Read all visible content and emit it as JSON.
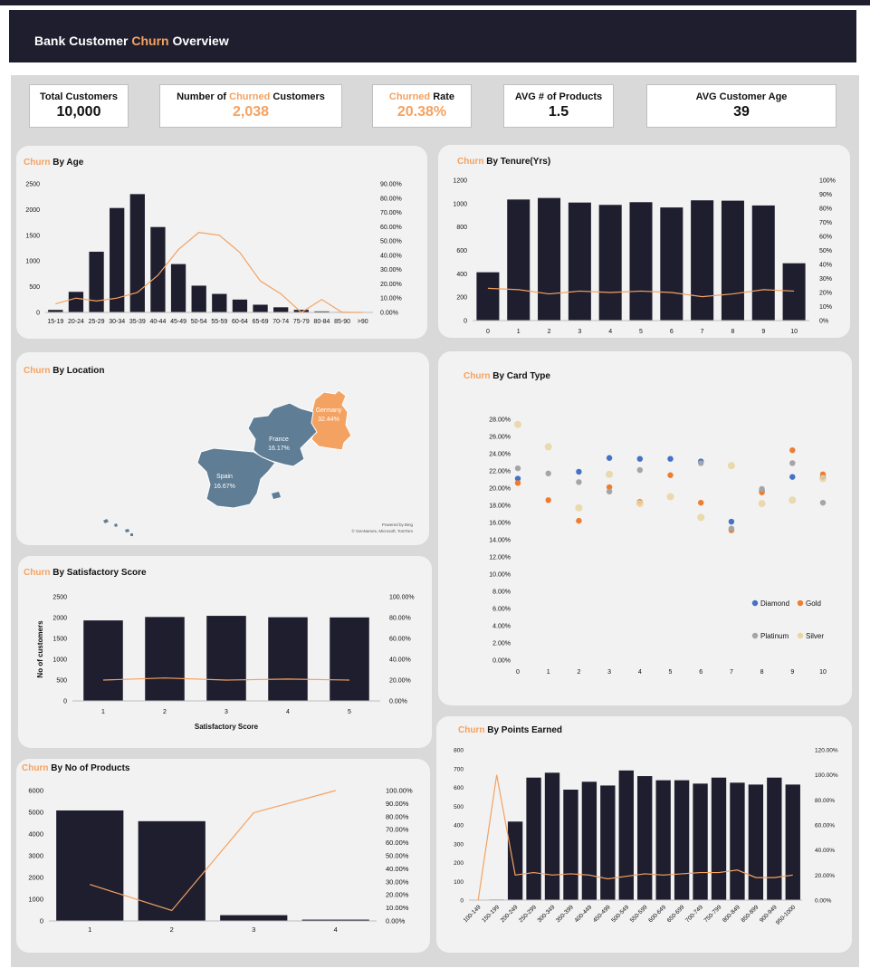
{
  "header": {
    "title_a": "Bank Customer ",
    "title_b": "Churn",
    "title_c": " Overview"
  },
  "kpis": [
    {
      "label_a": "Total Customers",
      "value": "10,000"
    },
    {
      "label_a": "Number of ",
      "label_b": "Churned",
      "label_c": " Customers",
      "value": "2,038"
    },
    {
      "label_b": "Churned",
      "label_c": " Rate",
      "value": "20.38%"
    },
    {
      "label_a": "AVG # of Products",
      "value": "1.5"
    },
    {
      "label_a": "AVG Customer Age",
      "value": "39"
    }
  ],
  "titles": {
    "churn": "Churn",
    "age": " By Age",
    "tenure": " By Tenure(Yrs)",
    "location": " By Location",
    "card": " By Card Type",
    "satisfaction": " By Satisfactory Score",
    "products": " By No of Products",
    "points": " By Points Earned"
  },
  "map": {
    "regions": [
      {
        "name": "Germany",
        "rate": "32.44%"
      },
      {
        "name": "France",
        "rate": "16.17%"
      },
      {
        "name": "Spain",
        "rate": "16.67%"
      }
    ],
    "credit_1": "Powered by Bing",
    "credit_2": "© GeoNames, Microsoft, TomTom"
  },
  "colors": {
    "bar": "#1f1e2e",
    "line": "#f4a261",
    "germany": "#f4a261",
    "france_spain": "#5f7d95",
    "diamond": "#4472c4",
    "gold": "#ed7d31",
    "platinum": "#a5a5a5",
    "silver": "#e8d5a0"
  },
  "chart_data": [
    {
      "id": "age",
      "type": "bar",
      "categories": [
        "15-19",
        "20-24",
        "25-29",
        "30-34",
        "35-39",
        "40-44",
        "45-49",
        "50-54",
        "55-59",
        "60-64",
        "65-69",
        "70-74",
        "75-79",
        "80-84",
        "85-90",
        ">90"
      ],
      "values": [
        49,
        400,
        1180,
        2030,
        2300,
        1660,
        940,
        520,
        360,
        250,
        150,
        100,
        50,
        20,
        10,
        5
      ],
      "line_values": [
        0.06,
        0.1,
        0.08,
        0.1,
        0.14,
        0.26,
        0.44,
        0.56,
        0.54,
        0.42,
        0.22,
        0.13,
        0.0,
        0.09,
        0.0,
        0.0
      ],
      "ylim": [
        0,
        2500
      ],
      "yticks": [
        "0",
        "500",
        "1000",
        "1500",
        "2000",
        "2500"
      ],
      "y2lim": [
        0,
        0.9
      ],
      "y2ticks": [
        "0.00%",
        "10.00%",
        "20.00%",
        "30.00%",
        "40.00%",
        "50.00%",
        "60.00%",
        "70.00%",
        "80.00%",
        "90.00%"
      ]
    },
    {
      "id": "tenure",
      "type": "bar",
      "categories": [
        "0",
        "1",
        "2",
        "3",
        "4",
        "5",
        "6",
        "7",
        "8",
        "9",
        "10"
      ],
      "values": [
        413,
        1035,
        1048,
        1009,
        989,
        1012,
        967,
        1028,
        1025,
        984,
        490
      ],
      "line_values": [
        0.23,
        0.22,
        0.19,
        0.21,
        0.2,
        0.21,
        0.2,
        0.17,
        0.19,
        0.22,
        0.21
      ],
      "ylim": [
        0,
        1200
      ],
      "yticks": [
        "0",
        "200",
        "400",
        "600",
        "800",
        "1000",
        "1200"
      ],
      "y2lim": [
        0,
        1.0
      ],
      "y2ticks": [
        "0%",
        "10%",
        "20%",
        "30%",
        "40%",
        "50%",
        "60%",
        "70%",
        "80%",
        "90%",
        "100%"
      ]
    },
    {
      "id": "card",
      "type": "scatter",
      "x": [
        0,
        1,
        2,
        3,
        4,
        5,
        6,
        7,
        8,
        9,
        10
      ],
      "series": [
        {
          "name": "Diamond",
          "values": [
            0.211,
            null,
            0.219,
            0.235,
            0.234,
            0.234,
            0.231,
            0.161,
            0.197,
            0.213,
            0.213
          ]
        },
        {
          "name": "Gold",
          "values": [
            0.206,
            0.186,
            0.162,
            0.201,
            0.184,
            0.215,
            0.183,
            0.151,
            0.195,
            0.244,
            0.216
          ]
        },
        {
          "name": "Platinum",
          "values": [
            0.223,
            0.217,
            0.207,
            0.196,
            0.221,
            null,
            0.229,
            0.153,
            0.199,
            0.229,
            0.183
          ]
        },
        {
          "name": "Silver",
          "values": [
            0.274,
            0.248,
            0.177,
            0.216,
            0.182,
            0.19,
            0.166,
            0.226,
            0.182,
            0.186,
            0.211
          ]
        }
      ],
      "ylim": [
        0,
        0.28
      ],
      "yticks": [
        "0.00%",
        "2.00%",
        "4.00%",
        "6.00%",
        "8.00%",
        "10.00%",
        "12.00%",
        "14.00%",
        "16.00%",
        "18.00%",
        "20.00%",
        "22.00%",
        "24.00%",
        "26.00%",
        "28.00%"
      ],
      "xticks": [
        "0",
        "1",
        "2",
        "3",
        "4",
        "5",
        "6",
        "7",
        "8",
        "9",
        "10"
      ]
    },
    {
      "id": "satisfaction",
      "type": "bar",
      "categories": [
        "1",
        "2",
        "3",
        "4",
        "5"
      ],
      "values": [
        1932,
        2014,
        2042,
        2008,
        2004
      ],
      "line_values": [
        0.2,
        0.22,
        0.2,
        0.21,
        0.2
      ],
      "ylim": [
        0,
        2500
      ],
      "yticks": [
        "0",
        "500",
        "1000",
        "1500",
        "2000",
        "2500"
      ],
      "y2lim": [
        0,
        1.0
      ],
      "y2ticks": [
        "0.00%",
        "20.00%",
        "40.00%",
        "60.00%",
        "80.00%",
        "100.00%"
      ],
      "xlabel": "Satisfactory Score",
      "ylabel": "No of customers"
    },
    {
      "id": "products",
      "type": "bar",
      "categories": [
        "1",
        "2",
        "3",
        "4"
      ],
      "values": [
        5084,
        4590,
        266,
        60
      ],
      "line_values": [
        0.28,
        0.08,
        0.83,
        1.0
      ],
      "ylim": [
        0,
        6000
      ],
      "yticks": [
        "0",
        "1000",
        "2000",
        "3000",
        "4000",
        "5000",
        "6000"
      ],
      "y2lim": [
        0,
        1.0
      ],
      "y2ticks": [
        "0.00%",
        "10.00%",
        "20.00%",
        "30.00%",
        "40.00%",
        "50.00%",
        "60.00%",
        "70.00%",
        "80.00%",
        "90.00%",
        "100.00%"
      ]
    },
    {
      "id": "points",
      "type": "bar",
      "categories": [
        "100-149",
        "150-199",
        "200-249",
        "250-299",
        "300-349",
        "350-399",
        "400-449",
        "450-499",
        "500-549",
        "550-599",
        "600-649",
        "650-699",
        "700-749",
        "750-799",
        "800-849",
        "850-899",
        "900-949",
        "950-1000"
      ],
      "values": [
        1,
        3,
        418,
        652,
        678,
        588,
        630,
        610,
        690,
        660,
        638,
        638,
        620,
        652,
        625,
        615,
        652,
        615
      ],
      "line_values": [
        0.0,
        1.0,
        0.2,
        0.22,
        0.2,
        0.21,
        0.2,
        0.17,
        0.19,
        0.21,
        0.2,
        0.21,
        0.22,
        0.22,
        0.24,
        0.18,
        0.18,
        0.2
      ],
      "ylim": [
        0,
        800
      ],
      "yticks": [
        "0",
        "100",
        "200",
        "300",
        "400",
        "500",
        "600",
        "700",
        "800"
      ],
      "y2lim": [
        0,
        1.2
      ],
      "y2ticks": [
        "0.00%",
        "20.00%",
        "40.00%",
        "60.00%",
        "80.00%",
        "100.00%",
        "120.00%"
      ]
    }
  ]
}
